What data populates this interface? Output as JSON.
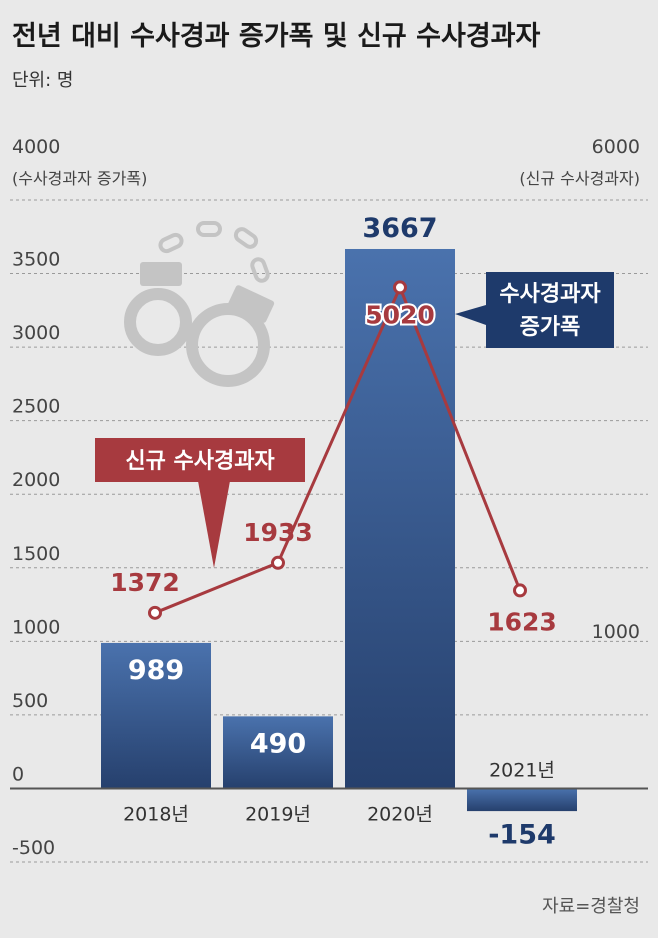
{
  "title": "전년 대비 수사경과 증가폭 및 신규 수사경과자",
  "unit": "단위: 명",
  "source": "자료=경찰청",
  "colors": {
    "bar_top": "#4a72ad",
    "bar_bottom": "#26406d",
    "line": "#a73a3f",
    "callout_blue": "#1e3a6b",
    "callout_red": "#a73a3f",
    "grid": "#9a9a9a",
    "zero_line": "#555555"
  },
  "chart_data": {
    "type": "bar+line",
    "categories": [
      "2018년",
      "2019년",
      "2020년",
      "2021년"
    ],
    "left_axis": {
      "label_top": "4000",
      "title": "(수사경과자 증가폭)",
      "ticks": [
        3500,
        3000,
        2500,
        2000,
        1500,
        1000,
        500,
        0,
        -500
      ],
      "range": [
        -500,
        4000
      ]
    },
    "right_axis": {
      "label_top": "6000",
      "title": "(신규 수사경과자)",
      "ticks": [
        1000
      ],
      "range": [
        1000,
        6000
      ]
    },
    "series": [
      {
        "name": "수사경과자 증가폭",
        "type": "bar",
        "axis": "left",
        "values": [
          989,
          490,
          3667,
          -154
        ],
        "labels": [
          "989",
          "490",
          "3667",
          "-154"
        ]
      },
      {
        "name": "신규 수사경과자",
        "type": "line",
        "axis": "right",
        "values": [
          1372,
          1933,
          5020,
          1623
        ],
        "labels": [
          "1372",
          "1933",
          "5020",
          "1623"
        ]
      }
    ],
    "callouts": {
      "bar": [
        "수사경과자",
        "증가폭"
      ],
      "line": "신규 수사경과자"
    }
  }
}
